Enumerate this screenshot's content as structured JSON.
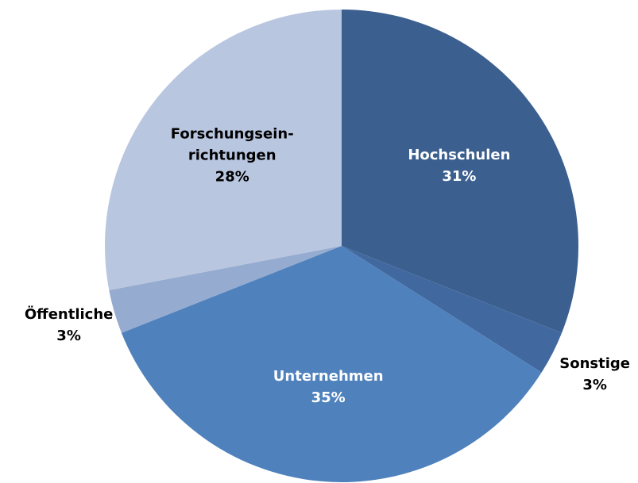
{
  "chart_data": {
    "type": "pie",
    "categories": [
      "Hochschulen",
      "Sonstige",
      "Unternehmen",
      "Öffentliche",
      "Forschungsein-\nrichtungen"
    ],
    "values": [
      31,
      3,
      35,
      3,
      28
    ],
    "value_labels": [
      "31%",
      "3%",
      "35%",
      "3%",
      "28%"
    ],
    "colors": [
      "#3b5f8f",
      "#42699f",
      "#4f81bd",
      "#95abd0",
      "#b9c6e0"
    ]
  }
}
